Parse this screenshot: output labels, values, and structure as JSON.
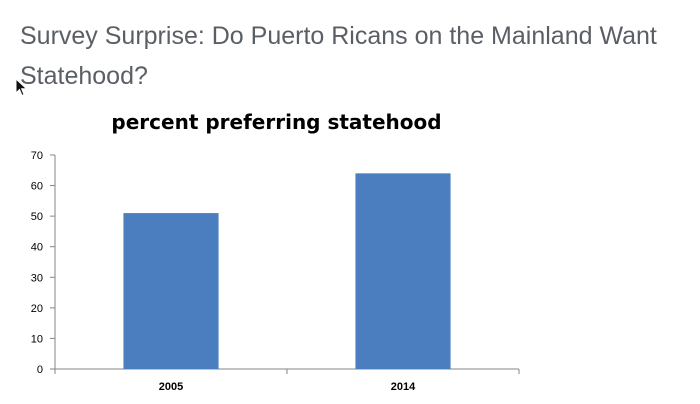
{
  "article": {
    "title": "Survey Surprise: Do Puerto Ricans on the Mainland Want Statehood?"
  },
  "cursor": {
    "icon": "mouse-pointer-icon"
  },
  "colors": {
    "bar": "#4a7ebf",
    "axis": "#868686",
    "title_text": "#5a5f66"
  },
  "chart_data": {
    "type": "bar",
    "title": "percent preferring statehood",
    "categories": [
      "2005",
      "2014"
    ],
    "values": [
      51,
      64
    ],
    "xlabel": "",
    "ylabel": "",
    "ylim": [
      0,
      70
    ],
    "yticks": [
      0,
      10,
      20,
      30,
      40,
      50,
      60,
      70
    ],
    "grid": false,
    "legend": "none"
  }
}
